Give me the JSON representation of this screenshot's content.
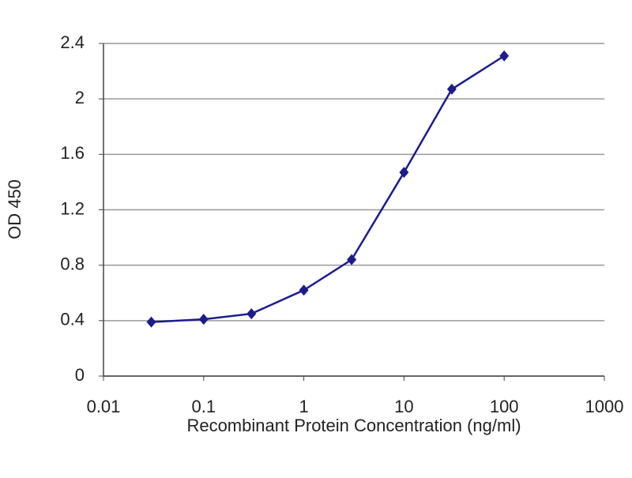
{
  "chart_data": {
    "type": "line",
    "x_label": "Recombinant Protein Concentration (ng/ml)",
    "y_label": "OD 450",
    "x_scale": "log",
    "x": [
      0.03,
      0.1,
      0.3,
      1,
      3,
      10,
      30,
      100
    ],
    "series": [
      {
        "name": "OD 450",
        "color": "#1c1c8a",
        "values": [
          0.39,
          0.41,
          0.45,
          0.62,
          0.84,
          1.47,
          2.07,
          2.31
        ]
      }
    ],
    "xlim": [
      0.01,
      1000
    ],
    "xticks": [
      0.01,
      0.1,
      1,
      10,
      100,
      1000
    ],
    "ylim": [
      0,
      2.4
    ],
    "yticks": [
      0,
      0.4,
      0.8,
      1.2,
      1.6,
      2,
      2.4
    ],
    "grid": true
  }
}
